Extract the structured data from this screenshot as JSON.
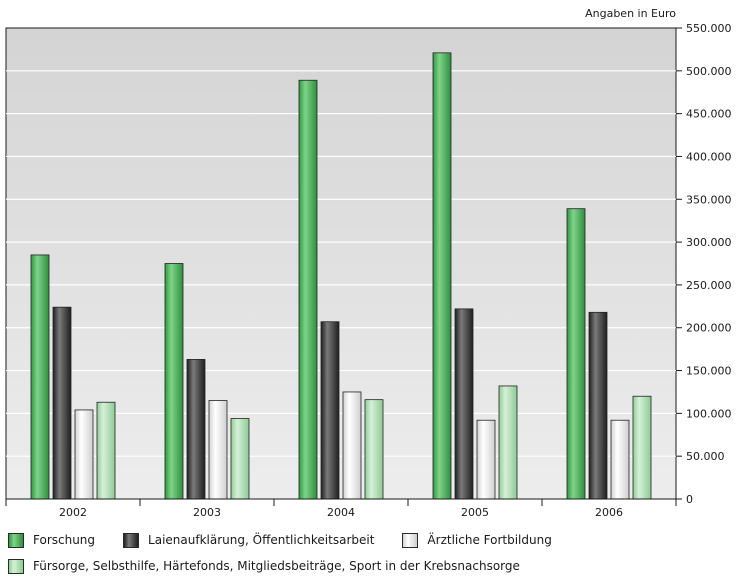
{
  "chart_data": {
    "type": "bar",
    "title": "",
    "ylabel": "Angaben in Euro",
    "xlabel": "",
    "categories": [
      "2002",
      "2003",
      "2004",
      "2005",
      "2006"
    ],
    "series": [
      {
        "name": "Forschung",
        "values": [
          285000,
          275000,
          489000,
          521000,
          339000
        ]
      },
      {
        "name": "Laienaufklärung, Öffentlichkeitsarbeit",
        "values": [
          224000,
          163000,
          207000,
          222000,
          218000
        ]
      },
      {
        "name": "Ärztliche Fortbildung",
        "values": [
          104000,
          115000,
          125000,
          92000,
          92000
        ]
      },
      {
        "name": "Fürsorge, Selbsthilfe, Härtefonds, Mitgliedsbeiträge, Sport in der Krebsnachsorge",
        "values": [
          113000,
          94000,
          116000,
          132000,
          120000
        ]
      }
    ],
    "ylim": [
      0,
      550000
    ],
    "yticks": [
      "0",
      "50.000",
      "100.000",
      "150.000",
      "200.000",
      "250.000",
      "300.000",
      "350.000",
      "400.000",
      "450.000",
      "500.000",
      "550.000"
    ],
    "yaxis_position": "right",
    "grid": true,
    "legend_position": "bottom",
    "colors": {
      "series": [
        "#3aa84a",
        "#3a3a3a",
        "#e4e4e4",
        "#a9dcad"
      ],
      "plot_background": "#d9d9d9",
      "grid": "#ffffff"
    }
  }
}
